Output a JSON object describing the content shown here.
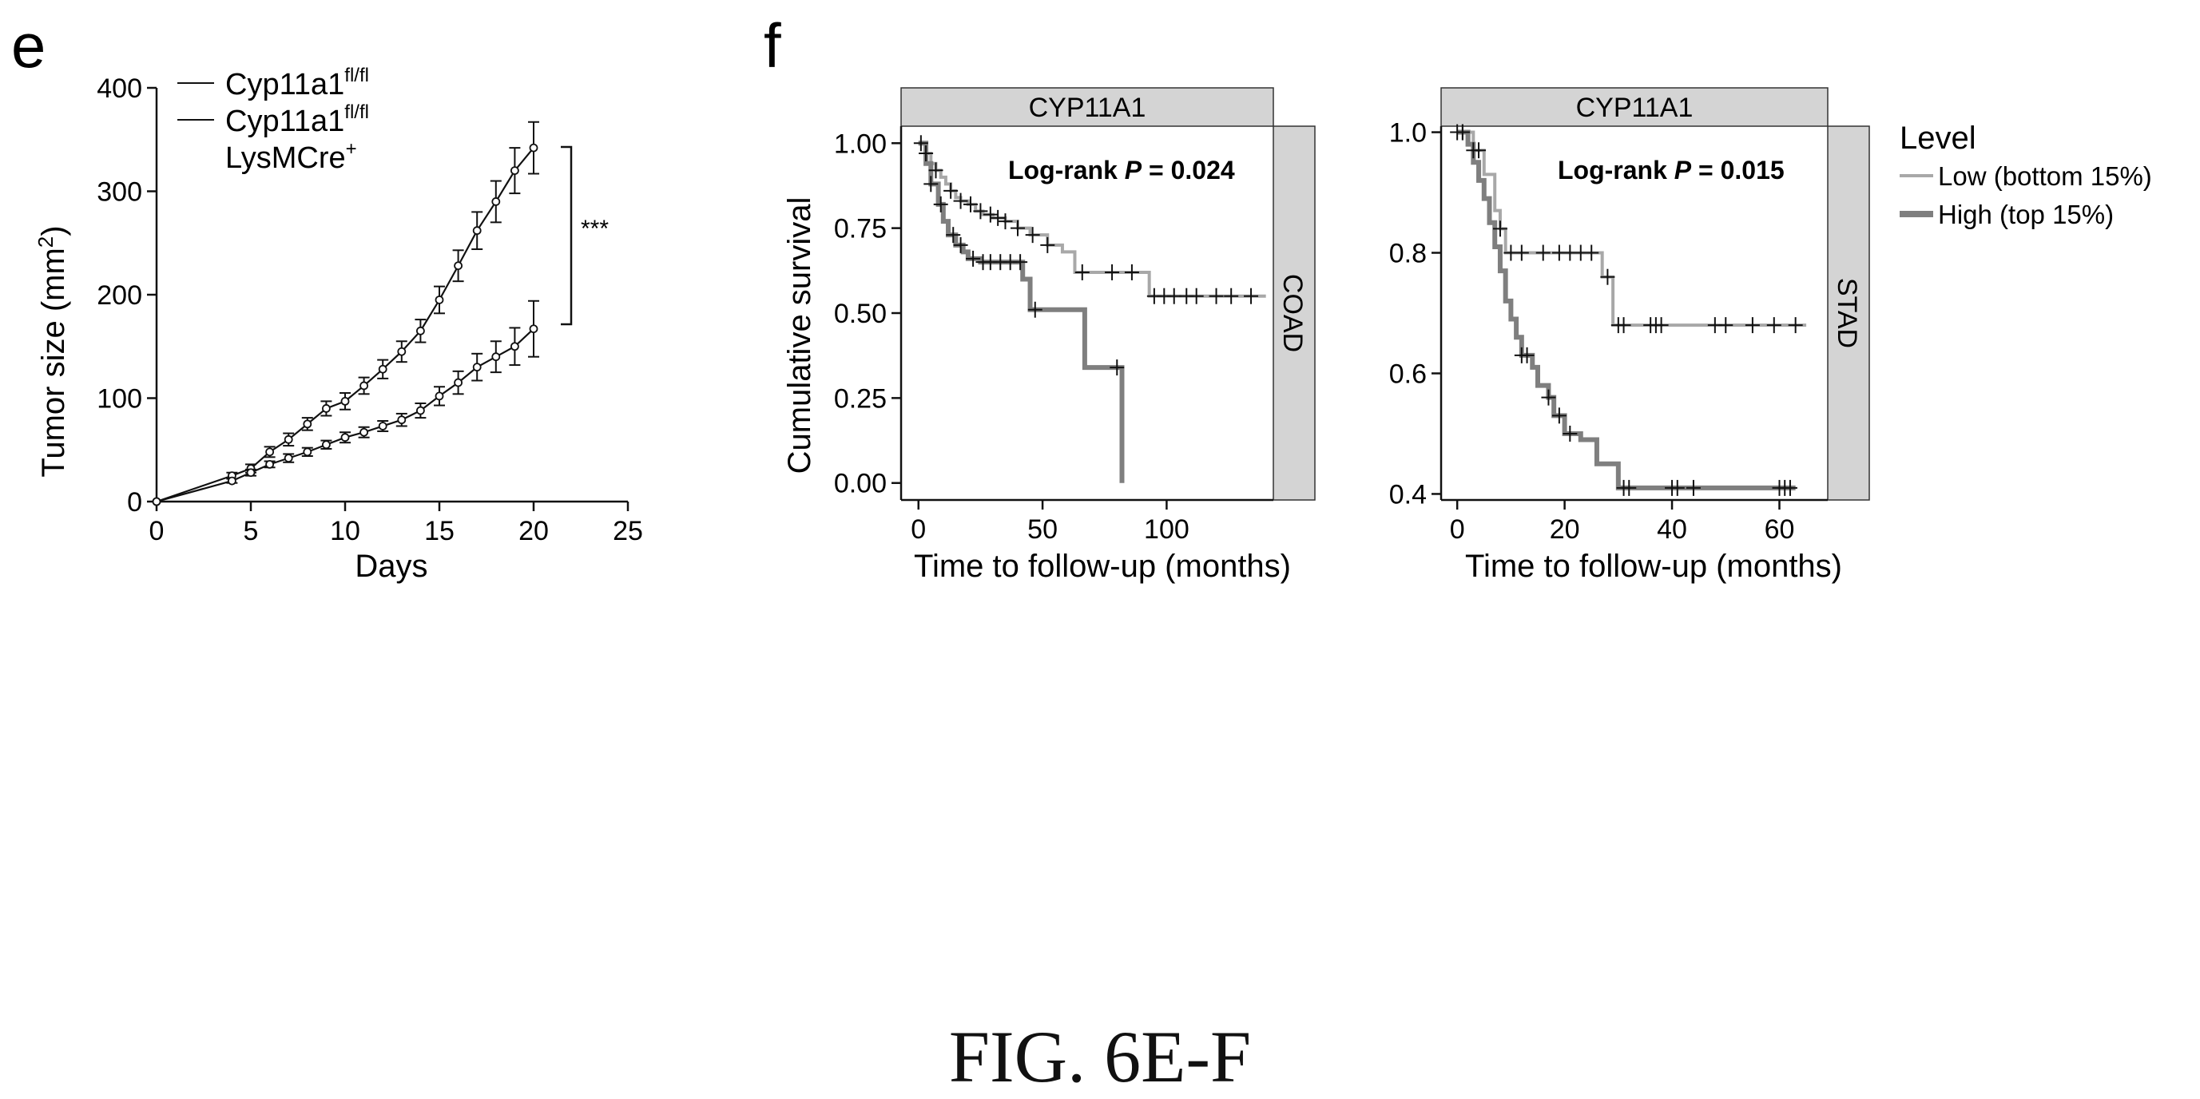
{
  "figure_caption": "FIG. 6E-F",
  "panels": {
    "e": "e",
    "f": "f"
  },
  "colors": {
    "axis": "#111111",
    "high": "#7f7f7f",
    "low": "#a8a8a8",
    "strip": "#d4d4d4",
    "censor": "#111111"
  },
  "chart_data": [
    {
      "id": "e",
      "type": "line",
      "ylabel_main": "Tumor size (mm",
      "ylabel_sup": "2",
      "ylabel_end": ")",
      "xlabel": "Days",
      "xlim": [
        0,
        25
      ],
      "ylim": [
        0,
        400
      ],
      "xticks": [
        "0",
        "5",
        "10",
        "15",
        "20",
        "25"
      ],
      "yticks": [
        "0",
        "100",
        "200",
        "300",
        "400"
      ],
      "significance": "***",
      "legend": [
        {
          "base": "Cyp11a1",
          "sup": "fl/fl",
          "line2": ""
        },
        {
          "base": "Cyp11a1",
          "sup": "fl/fl",
          "line2": "LysMCre",
          "line2_sup": "+"
        }
      ],
      "x": [
        0,
        4,
        5,
        6,
        7,
        8,
        9,
        10,
        11,
        12,
        13,
        14,
        15,
        16,
        17,
        18,
        19,
        20
      ],
      "series": [
        {
          "values": [
            0,
            25,
            32,
            48,
            60,
            75,
            90,
            97,
            112,
            128,
            145,
            165,
            195,
            228,
            262,
            290,
            320,
            342
          ],
          "err": [
            0,
            3,
            4,
            5,
            6,
            6,
            7,
            8,
            8,
            9,
            10,
            11,
            13,
            15,
            18,
            20,
            22,
            25
          ]
        },
        {
          "values": [
            0,
            20,
            28,
            36,
            42,
            48,
            55,
            62,
            67,
            73,
            79,
            88,
            102,
            115,
            130,
            140,
            150,
            167
          ],
          "err": [
            0,
            2,
            3,
            3,
            4,
            4,
            4,
            5,
            5,
            5,
            6,
            7,
            9,
            11,
            13,
            15,
            18,
            27
          ]
        }
      ]
    },
    {
      "id": "f-coad",
      "type": "line",
      "strip_top": "CYP11A1",
      "strip_right": "COAD",
      "ylabel": "Cumulative survival",
      "xlabel": "Time to follow-up (months)",
      "annotation_main": "Log-rank ",
      "annotation_p": "P",
      "annotation_val": " = 0.024",
      "xlim": [
        -7,
        143
      ],
      "ylim": [
        -0.05,
        1.05
      ],
      "xticks": [
        "0",
        "50",
        "100"
      ],
      "yticks": [
        "0.00",
        "0.25",
        "0.50",
        "0.75",
        "1.00"
      ],
      "series": [
        {
          "key": "low",
          "x": [
            0,
            3,
            5,
            7,
            9,
            11,
            13,
            15,
            17,
            20,
            23,
            26,
            30,
            35,
            40,
            45,
            52,
            58,
            63,
            75,
            93,
            140
          ],
          "y": [
            1.0,
            0.97,
            0.94,
            0.92,
            0.9,
            0.88,
            0.86,
            0.84,
            0.83,
            0.82,
            0.8,
            0.79,
            0.78,
            0.77,
            0.75,
            0.73,
            0.7,
            0.68,
            0.62,
            0.62,
            0.55,
            0.55
          ],
          "censor_x": [
            3,
            7,
            13,
            17,
            21,
            25,
            29,
            32,
            35,
            40,
            46,
            52,
            66,
            78,
            86,
            95,
            99,
            103,
            108,
            112,
            120,
            126,
            134
          ]
        },
        {
          "key": "high",
          "x": [
            0,
            3,
            5,
            8,
            10,
            12,
            15,
            18,
            20,
            25,
            30,
            42,
            45,
            67,
            82,
            82
          ],
          "y": [
            1.0,
            0.94,
            0.88,
            0.82,
            0.77,
            0.73,
            0.7,
            0.68,
            0.66,
            0.65,
            0.65,
            0.6,
            0.51,
            0.34,
            0.34,
            0.0
          ],
          "censor_x": [
            1,
            5,
            9,
            14,
            17,
            22,
            26,
            29,
            33,
            37,
            41,
            47,
            80
          ]
        }
      ]
    },
    {
      "id": "f-stad",
      "type": "line",
      "strip_top": "CYP11A1",
      "strip_right": "STAD",
      "xlabel": "Time to follow-up (months)",
      "annotation_main": "Log-rank ",
      "annotation_p": "P",
      "annotation_val": " = 0.015",
      "xlim": [
        -3,
        69
      ],
      "ylim": [
        0.39,
        1.01
      ],
      "xticks": [
        "0",
        "20",
        "40",
        "60"
      ],
      "yticks": [
        "0.4",
        "0.6",
        "0.8",
        "1.0"
      ],
      "legend_title": "Level",
      "legend": [
        {
          "key": "low",
          "label": "Low (bottom 15%)"
        },
        {
          "key": "high",
          "label": "High (top 15%)"
        }
      ],
      "series": [
        {
          "key": "low",
          "x": [
            0,
            3,
            5,
            7,
            8,
            9,
            25,
            27,
            29,
            65
          ],
          "y": [
            1.0,
            0.97,
            0.93,
            0.87,
            0.84,
            0.8,
            0.8,
            0.76,
            0.68,
            0.68
          ],
          "censor_x": [
            1,
            3,
            4,
            8,
            10,
            12,
            16,
            19,
            21,
            23,
            25,
            28,
            30,
            31,
            36,
            37,
            38,
            48,
            50,
            55,
            59,
            63
          ]
        },
        {
          "key": "high",
          "x": [
            0,
            2,
            3,
            4,
            5,
            6,
            7,
            8,
            9,
            10,
            11,
            12,
            14,
            15,
            17,
            18,
            20,
            23,
            26,
            28,
            30,
            63
          ],
          "y": [
            1.0,
            0.98,
            0.95,
            0.92,
            0.89,
            0.85,
            0.81,
            0.77,
            0.72,
            0.69,
            0.66,
            0.63,
            0.61,
            0.58,
            0.56,
            0.53,
            0.5,
            0.49,
            0.45,
            0.45,
            0.41,
            0.41
          ],
          "censor_x": [
            0,
            1,
            12,
            13,
            17,
            19,
            21,
            31,
            32,
            40,
            41,
            44,
            60,
            61,
            62
          ]
        }
      ]
    }
  ]
}
